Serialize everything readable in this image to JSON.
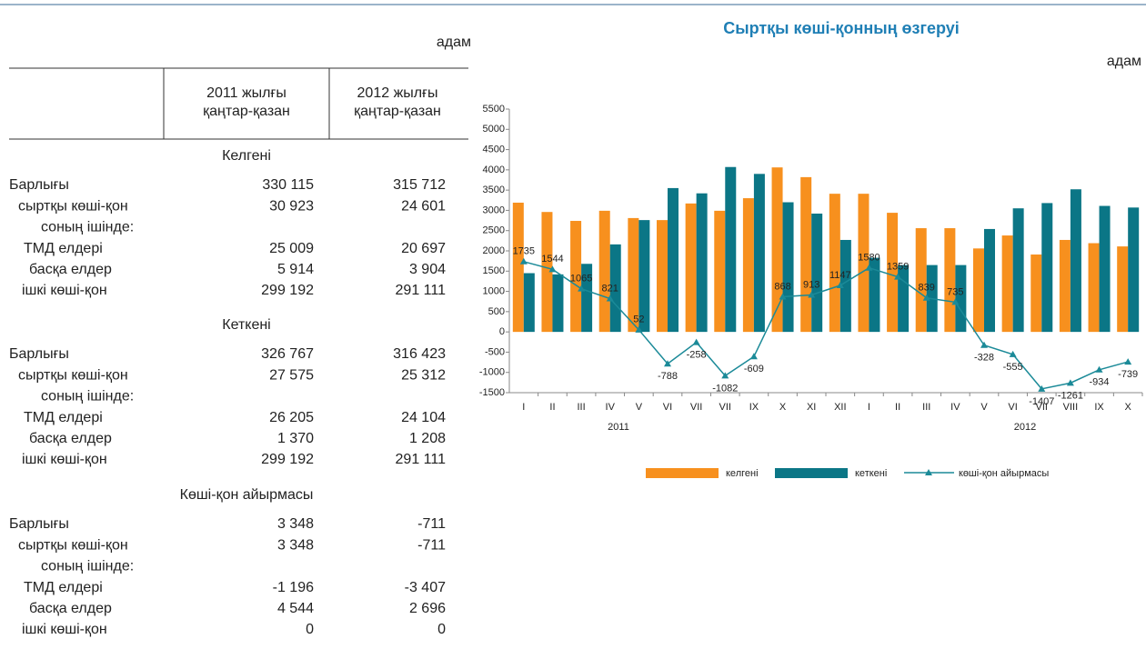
{
  "table": {
    "unit": "адам",
    "columns": [
      [
        "2011 жылғы",
        "қаңтар-қазан"
      ],
      [
        "2012 жылғы",
        "қаңтар-қазан"
      ]
    ],
    "sections": [
      {
        "title": "Келгені",
        "rows": [
          {
            "label": "Барлығы",
            "values": [
              "330 115",
              "315 712"
            ]
          },
          {
            "label": "сыртқы көші-қон",
            "values": [
              "30 923",
              "24 601"
            ]
          },
          {
            "label": "соның ішінде:"
          },
          {
            "label": "ТМД елдері",
            "values": [
              "25 009",
              "20 697"
            ]
          },
          {
            "label": "басқа елдер",
            "values": [
              "5 914",
              "3 904"
            ]
          },
          {
            "label": "ішкі көші-қон",
            "values": [
              "299 192",
              "291 111"
            ]
          }
        ]
      },
      {
        "title": "Кеткені",
        "rows": [
          {
            "label": "Барлығы",
            "values": [
              "326 767",
              "316 423"
            ]
          },
          {
            "label": "сыртқы көші-қон",
            "values": [
              "27 575",
              "25 312"
            ]
          },
          {
            "label": "соның ішінде:"
          },
          {
            "label": "ТМД елдері",
            "values": [
              "26 205",
              "24 104"
            ]
          },
          {
            "label": "басқа елдер",
            "values": [
              "1 370",
              "1 208"
            ]
          },
          {
            "label": "ішкі көші-қон",
            "values": [
              "299 192",
              "291 111"
            ]
          }
        ]
      },
      {
        "title": "Көші-қон айырмасы",
        "rows": [
          {
            "label": "Барлығы",
            "values": [
              "3 348",
              "-711"
            ]
          },
          {
            "label": "сыртқы көші-қон",
            "values": [
              "3 348",
              "-711"
            ]
          },
          {
            "label": "соның ішінде:"
          },
          {
            "label": "ТМД елдері",
            "values": [
              "-1 196",
              "-3 407"
            ]
          },
          {
            "label": "басқа елдер",
            "values": [
              "4 544",
              "2 696"
            ]
          },
          {
            "label": "ішкі көші-қон",
            "values": [
              "0",
              "0"
            ]
          }
        ]
      }
    ]
  },
  "chart_data": {
    "type": "bar",
    "title": "Сыртқы көші-қонның өзгеруі",
    "y_label": "адам",
    "categories": [
      "I",
      "II",
      "III",
      "IV",
      "V",
      "VI",
      "VII",
      "VII",
      "IX",
      "X",
      "XI",
      "XII",
      "I",
      "II",
      "III",
      "IV",
      "V",
      "VI",
      "VII",
      "VIII",
      "IX",
      "X"
    ],
    "years": [
      "2011",
      "2012"
    ],
    "series": [
      {
        "name": "келгені",
        "type": "bar",
        "color": "#f7901e",
        "values": [
          3190,
          2960,
          2740,
          2990,
          2810,
          2760,
          3170,
          2990,
          3300,
          4060,
          3820,
          3410,
          3410,
          2940,
          2560,
          2560,
          2060,
          2380,
          1910,
          2270,
          2190,
          2110
        ]
      },
      {
        "name": "кеткені",
        "type": "bar",
        "color": "#0b7686",
        "values": [
          1450,
          1420,
          1680,
          2160,
          2760,
          3550,
          3420,
          4070,
          3900,
          3200,
          2920,
          2270,
          1830,
          1650,
          1650,
          1650,
          2540,
          3050,
          3180,
          3520,
          3110,
          3070
        ]
      },
      {
        "name": "көші-қон айырмасы",
        "type": "line",
        "color": "#1b8a98",
        "values": [
          1735,
          1544,
          1065,
          821,
          52,
          -788,
          -258,
          -1082,
          -609,
          868,
          913,
          1147,
          1580,
          1359,
          839,
          735,
          -328,
          -555,
          -1407,
          -1261,
          -934,
          -739
        ]
      }
    ],
    "ylim": [
      -1500,
      5500
    ],
    "yticks": [
      -1500,
      -1000,
      -500,
      0,
      500,
      1000,
      1500,
      2000,
      2500,
      3000,
      3500,
      4000,
      4500,
      5000,
      5500
    ],
    "grid": false
  }
}
